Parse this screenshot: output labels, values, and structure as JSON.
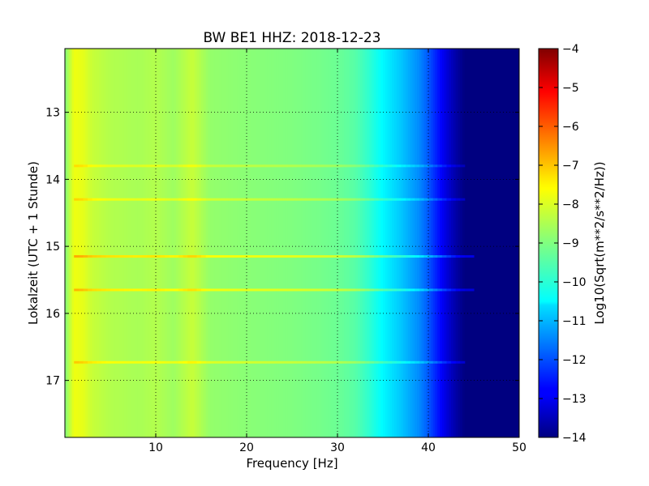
{
  "chart_data": {
    "type": "heatmap",
    "title": "BW BE1 HHZ: 2018-12-23",
    "xlabel": "Frequency [Hz]",
    "ylabel": "Lokalzeit (UTC + 1 Stunde)",
    "xlim": [
      0,
      50
    ],
    "ylim": [
      12.05,
      17.85
    ],
    "y_inverted": true,
    "x_ticks": [
      10,
      20,
      30,
      40,
      50
    ],
    "y_ticks": [
      13,
      14,
      15,
      16,
      17
    ],
    "grid": true,
    "colormap": "jet",
    "colorbar": {
      "label": "Log10(Sqrt(m**2/s**2/Hz))",
      "range": [
        -14,
        -4
      ],
      "ticks": [
        -4,
        -5,
        -6,
        -7,
        -8,
        -9,
        -10,
        -11,
        -12,
        -13,
        -14
      ]
    },
    "spectral_profile": {
      "frequency_hz": [
        0,
        1,
        2,
        3,
        5,
        8,
        10,
        12,
        14,
        16,
        20,
        25,
        28,
        30,
        32,
        33.5,
        35,
        37,
        39,
        40,
        41,
        42,
        43,
        44,
        45,
        50
      ],
      "level": [
        -9,
        -7.9,
        -8.0,
        -8.3,
        -8.5,
        -8.6,
        -8.5,
        -8.7,
        -8.3,
        -8.8,
        -8.9,
        -9.0,
        -9.1,
        -9.2,
        -9.4,
        -9.8,
        -10.3,
        -10.8,
        -11.4,
        -11.9,
        -12.5,
        -13.1,
        -13.6,
        -14,
        -14,
        -14
      ]
    },
    "horizontal_bands": [
      {
        "time": 13.8,
        "delta": 0.5,
        "max_freq_hz": 44
      },
      {
        "time": 14.3,
        "delta": 0.6,
        "max_freq_hz": 44
      },
      {
        "time": 15.15,
        "delta": 1.0,
        "max_freq_hz": 45
      },
      {
        "time": 15.65,
        "delta": 0.9,
        "max_freq_hz": 45
      },
      {
        "time": 16.73,
        "delta": 0.7,
        "max_freq_hz": 44
      }
    ],
    "colors": {
      "axis": "#000000",
      "grid": "#000000",
      "background": "#ffffff"
    }
  }
}
